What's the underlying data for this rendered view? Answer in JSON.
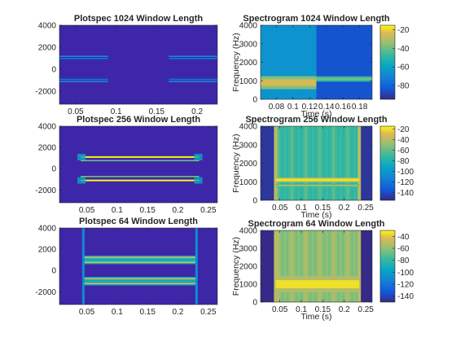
{
  "figure": {
    "background": "#ffffff"
  },
  "chart_data": [
    {
      "type": "heatmap",
      "kind": "plotspec",
      "window_length": 1024,
      "title": "Plotspec 1024 Window Length",
      "xlabel": "",
      "ylabel": "",
      "xlim": [
        0.03,
        0.225
      ],
      "ylim": [
        -3200,
        4000
      ],
      "xticks": [
        0.05,
        0.1,
        0.15,
        0.2
      ],
      "xtick_labels": [
        "0.05",
        "0.1",
        "0.15",
        "0.2"
      ],
      "yticks": [
        4000,
        2000,
        0,
        -2000
      ],
      "ytick_labels": [
        "4000",
        "2000",
        "0",
        "-2000"
      ],
      "background_color": "#3e26a8",
      "bands": [
        {
          "freq": 1150,
          "x_segments": [
            [
              0.03,
              0.09
            ],
            [
              0.165,
              0.225
            ]
          ],
          "intensity": 0.35
        },
        {
          "freq": 950,
          "x_segments": [
            [
              0.03,
              0.09
            ],
            [
              0.165,
              0.225
            ]
          ],
          "intensity": 0.25
        },
        {
          "freq": -950,
          "x_segments": [
            [
              0.03,
              0.09
            ],
            [
              0.165,
              0.225
            ]
          ],
          "intensity": 0.25
        },
        {
          "freq": -1150,
          "x_segments": [
            [
              0.03,
              0.09
            ],
            [
              0.165,
              0.225
            ]
          ],
          "intensity": 0.35
        }
      ]
    },
    {
      "type": "heatmap",
      "kind": "spectrogram",
      "window_length": 1024,
      "title": "Spectrogram 1024 Window Length",
      "xlabel": "Time (s)",
      "ylabel": "Frequency (Hz)",
      "xlim": [
        0.061,
        0.195
      ],
      "ylim": [
        0,
        4000
      ],
      "xticks": [
        0.08,
        0.1,
        0.12,
        0.14,
        0.16,
        0.18
      ],
      "xtick_labels": [
        "0.08",
        "0.1",
        "0.12",
        "0.14",
        "0.16",
        "0.18"
      ],
      "yticks": [
        4000,
        3000,
        2000,
        1000,
        0
      ],
      "ytick_labels": [
        "4000",
        "3000",
        "2000",
        "1000",
        "0"
      ],
      "colorbar": {
        "clim": [
          -95,
          -15
        ],
        "ticks": [
          -20,
          -40,
          -60,
          -80
        ],
        "tick_labels": [
          "-20",
          "-40",
          "-60",
          "-80"
        ]
      },
      "background": [
        {
          "x_range": [
            0.061,
            0.128
          ],
          "value": -65
        },
        {
          "x_range": [
            0.128,
            0.195
          ],
          "value": -85
        }
      ],
      "bands": [
        {
          "freq_center": 900,
          "freq_width": 700,
          "x_range": [
            0.061,
            0.128
          ],
          "value": -25
        },
        {
          "freq_center": 1100,
          "freq_width": 300,
          "x_range": [
            0.128,
            0.195
          ],
          "value": -40
        }
      ]
    },
    {
      "type": "heatmap",
      "kind": "plotspec",
      "window_length": 256,
      "title": "Plotspec 256 Window Length",
      "xlabel": "",
      "ylabel": "",
      "xlim": [
        0.005,
        0.265
      ],
      "ylim": [
        -3200,
        4000
      ],
      "xticks": [
        0.05,
        0.1,
        0.15,
        0.2,
        0.25
      ],
      "xtick_labels": [
        "0.05",
        "0.1",
        "0.15",
        "0.2",
        "0.25"
      ],
      "yticks": [
        4000,
        2000,
        0,
        -2000
      ],
      "ytick_labels": [
        "4000",
        "2000",
        "0",
        "-2000"
      ],
      "background_color": "#3e26a8",
      "bands": [
        {
          "freq": 1100,
          "x_segments": [
            [
              0.04,
              0.235
            ]
          ],
          "intensity": 1.0
        },
        {
          "freq": 750,
          "x_segments": [
            [
              0.04,
              0.235
            ]
          ],
          "intensity": 0.7
        },
        {
          "freq": -750,
          "x_segments": [
            [
              0.04,
              0.235
            ]
          ],
          "intensity": 0.7
        },
        {
          "freq": -1100,
          "x_segments": [
            [
              0.04,
              0.235
            ]
          ],
          "intensity": 1.0
        }
      ]
    },
    {
      "type": "heatmap",
      "kind": "spectrogram",
      "window_length": 256,
      "title": "Spectrogram 256 Window Length",
      "xlabel": "Time (s)",
      "ylabel": "Frequency (Hz)",
      "xlim": [
        0.005,
        0.265
      ],
      "ylim": [
        0,
        4000
      ],
      "xticks": [
        0.05,
        0.1,
        0.15,
        0.2,
        0.25
      ],
      "xtick_labels": [
        "0.05",
        "0.1",
        "0.15",
        "0.2",
        "0.25"
      ],
      "yticks": [
        4000,
        3000,
        2000,
        1000,
        0
      ],
      "ytick_labels": [
        "4000",
        "3000",
        "2000",
        "1000",
        "0"
      ],
      "colorbar": {
        "clim": [
          -155,
          -15
        ],
        "ticks": [
          -20,
          -40,
          -60,
          -80,
          -100,
          -120,
          -140
        ],
        "tick_labels": [
          "-20",
          "-40",
          "-60",
          "-80",
          "-100",
          "-120",
          "-140"
        ]
      },
      "background_value": -150,
      "signal_x_range": [
        0.04,
        0.235
      ],
      "signal_value": -70,
      "bands": [
        {
          "freq_center": 1100,
          "freq_width": 250,
          "x_range": [
            0.04,
            0.235
          ],
          "value": -20
        },
        {
          "freq_center": 800,
          "freq_width": 150,
          "x_range": [
            0.04,
            0.235
          ],
          "value": -45
        }
      ]
    },
    {
      "type": "heatmap",
      "kind": "plotspec",
      "window_length": 64,
      "title": "Plotspec 64 Window Length",
      "xlabel": "",
      "ylabel": "",
      "xlim": [
        0.005,
        0.265
      ],
      "ylim": [
        -3200,
        4000
      ],
      "xticks": [
        0.05,
        0.1,
        0.15,
        0.2,
        0.25
      ],
      "xtick_labels": [
        "0.05",
        "0.1",
        "0.15",
        "0.2",
        "0.25"
      ],
      "yticks": [
        4000,
        2000,
        0,
        -2000
      ],
      "ytick_labels": [
        "4000",
        "2000",
        "0",
        "-2000"
      ],
      "background_color": "#3e26a8",
      "bands": [
        {
          "freq": 1000,
          "freq_width": 800,
          "x_segments": [
            [
              0.045,
              0.23
            ]
          ],
          "intensity": 0.9
        },
        {
          "freq": -1000,
          "freq_width": 800,
          "x_segments": [
            [
              0.045,
              0.23
            ]
          ],
          "intensity": 0.9
        }
      ]
    },
    {
      "type": "heatmap",
      "kind": "spectrogram",
      "window_length": 64,
      "title": "Spectrogram 64 Window Length",
      "xlabel": "Time (s)",
      "ylabel": "Frequency (Hz)",
      "xlim": [
        0.005,
        0.265
      ],
      "ylim": [
        0,
        4000
      ],
      "xticks": [
        0.05,
        0.1,
        0.15,
        0.2,
        0.25
      ],
      "xtick_labels": [
        "0.05",
        "0.1",
        "0.15",
        "0.2",
        "0.25"
      ],
      "yticks": [
        4000,
        3000,
        2000,
        1000,
        0
      ],
      "ytick_labels": [
        "4000",
        "3000",
        "2000",
        "1000",
        "0"
      ],
      "colorbar": {
        "clim": [
          -150,
          -30
        ],
        "ticks": [
          -40,
          -60,
          -80,
          -100,
          -120,
          -140
        ],
        "tick_labels": [
          "-40",
          "-60",
          "-80",
          "-100",
          "-120",
          "-140"
        ]
      },
      "background_value": -150,
      "signal_x_range": [
        0.04,
        0.235
      ],
      "signal_value": -60,
      "bands": [
        {
          "freq_center": 1000,
          "freq_width": 900,
          "x_range": [
            0.04,
            0.235
          ],
          "value": -35
        }
      ]
    }
  ]
}
